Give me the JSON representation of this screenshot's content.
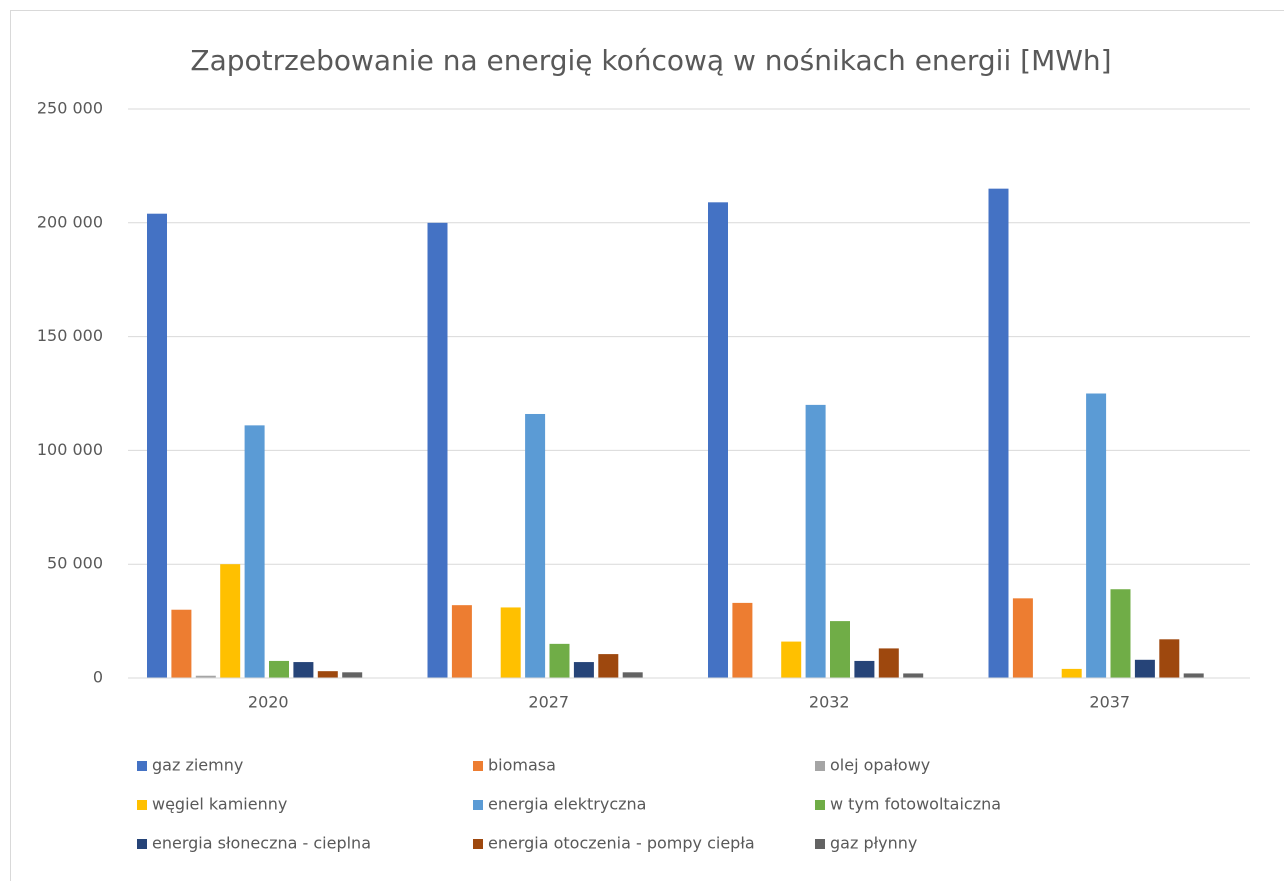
{
  "chart_data": {
    "type": "bar",
    "title": "Zapotrzebowanie na energię końcową w nośnikach energii [MWh]",
    "categories": [
      "2020",
      "2027",
      "2032",
      "2037"
    ],
    "series": [
      {
        "name": "gaz ziemny",
        "color": "#4472c4",
        "values": [
          204000,
          200000,
          209000,
          215000
        ]
      },
      {
        "name": "biomasa",
        "color": "#ed7d31",
        "values": [
          30000,
          32000,
          33000,
          35000
        ]
      },
      {
        "name": "olej opałowy",
        "color": "#a5a5a5",
        "values": [
          1000,
          0,
          0,
          0
        ]
      },
      {
        "name": "węgiel kamienny",
        "color": "#ffc000",
        "values": [
          50000,
          31000,
          16000,
          4000
        ]
      },
      {
        "name": "energia elektryczna",
        "color": "#5b9bd5",
        "values": [
          111000,
          116000,
          120000,
          125000
        ]
      },
      {
        "name": "w tym fotowoltaiczna",
        "color": "#70ad47",
        "values": [
          7500,
          15000,
          25000,
          39000
        ]
      },
      {
        "name": "energia słoneczna - cieplna",
        "color": "#264478",
        "values": [
          7000,
          7000,
          7500,
          8000
        ]
      },
      {
        "name": "energia otoczenia - pompy ciepła",
        "color": "#9e480e",
        "values": [
          3000,
          10500,
          13000,
          17000
        ]
      },
      {
        "name": "gaz płynny",
        "color": "#636363",
        "values": [
          2500,
          2500,
          2000,
          2000
        ]
      }
    ],
    "ylim": [
      0,
      250000
    ],
    "yticks": [
      0,
      {
        "value": 50000,
        "label": "50 000"
      },
      {
        "value": 100000,
        "label": "100 000"
      },
      {
        "value": 150000,
        "label": "150 000"
      },
      {
        "value": 200000,
        "label": "200 000"
      },
      {
        "value": 250000,
        "label": "250 000"
      }
    ],
    "grid": true
  }
}
